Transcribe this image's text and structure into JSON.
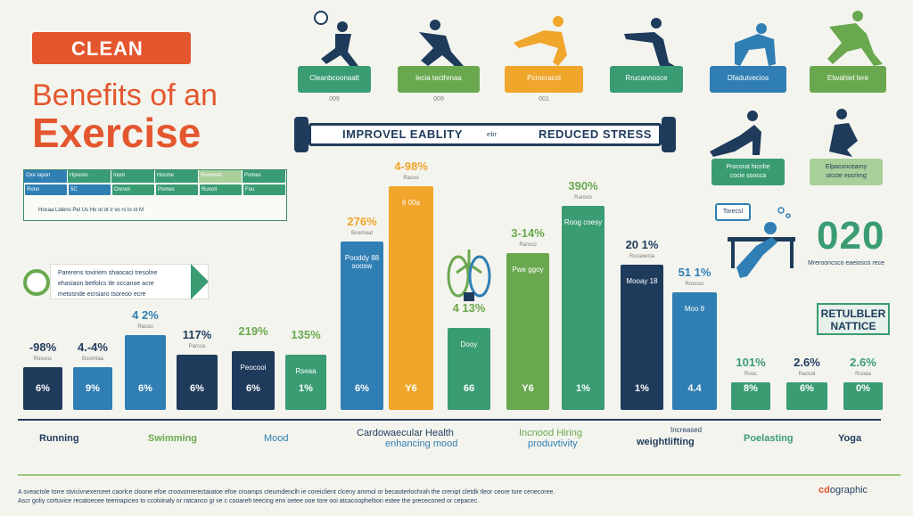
{
  "header": {
    "tag": "CLEAN",
    "title_line1": "Benefits of an",
    "title_line2": "Exercise"
  },
  "mini_table": {
    "headers": [
      "Oxe lapon",
      "Hpresin",
      "Inom",
      "Hocme",
      "Ronnwet",
      "Pomes"
    ],
    "cells": [
      "Ronn",
      "5C",
      "Onrvol",
      "Pomes",
      "Runoll",
      "Fou"
    ],
    "footer": "Hocaa   Lidens   Pel   Us   Ho   ot   ot   ir   vo   rs   lo   ot   M"
  },
  "badge": {
    "lines": [
      "Parerens toviriem shaocaci tresolne",
      "ehasiaon betfolcs tle occanoe acre",
      "metosnde ecrsiaro tsoreoo ecre"
    ]
  },
  "top_cards": [
    {
      "label": "Cleanbcoonaalt",
      "sub": "009",
      "color": "#3a9c72"
    },
    {
      "label": "lecia tecthmaa",
      "sub": "009",
      "color": "#6aa84f"
    },
    {
      "label": "Pcrocracol",
      "sub": "001",
      "color": "#f0a52b"
    },
    {
      "label": "Rrucannosce",
      "sub": "",
      "color": "#3a9c72"
    },
    {
      "label": "Dfadutvecios",
      "sub": "",
      "color": "#2f7fb4"
    },
    {
      "label": "Etwahiet lere",
      "sub": "",
      "color": "#6aa84f"
    }
  ],
  "barbell": {
    "left": "IMPROVEL EABLITY",
    "mid": "ebr",
    "right": "REDUCED STRESS"
  },
  "side_cards": [
    {
      "line1": "Procorat hicnhe",
      "line2": "cocie soocca",
      "color": "#3a9c72"
    },
    {
      "line1": "Elpaconcearny",
      "line2": "otccte eocrimg",
      "color": "#a9cf9a"
    }
  ],
  "speech": "Torecsl",
  "stat": {
    "value": "020",
    "sub": "Mrerooncsco eaeiosco rece"
  },
  "retention_box": {
    "line1": "RETULBLER",
    "line2": "NATTICE"
  },
  "chart_data": {
    "type": "bar",
    "bars": [
      {
        "label": "-98%",
        "sub": "Rooonc",
        "inner": "6%",
        "mid": "",
        "value": 11,
        "color": "#1f3b5c",
        "label_color": "#1f3b5c"
      },
      {
        "label": "4.-4%",
        "sub": "Boomtaa",
        "inner": "9%",
        "mid": "",
        "value": 11,
        "color": "#2f7fb4",
        "label_color": "#1f3b5c"
      },
      {
        "label": "4 2%",
        "sub": "Racoo",
        "inner": "6%",
        "mid": "",
        "value": 19,
        "color": "#2f7fb4",
        "label_color": "#2f7fb4"
      },
      {
        "label": "117%",
        "sub": "Parcca",
        "inner": "6%",
        "mid": "",
        "value": 14,
        "color": "#1f3b5c",
        "label_color": "#1f3b5c"
      },
      {
        "label": "219%",
        "sub": "",
        "inner": "6%",
        "mid": "Peocool",
        "value": 15,
        "color": "#1f3b5c",
        "label_color": "#6aa84f"
      },
      {
        "label": "135%",
        "sub": "",
        "inner": "1%",
        "mid": "Rseaa",
        "value": 14,
        "color": "#3a9c72",
        "label_color": "#6aa84f"
      },
      {
        "label": "276%",
        "sub": "Boamaat",
        "inner": "6%",
        "mid": "Pooddy 88 soosw",
        "value": 43,
        "color": "#2f7fb4",
        "label_color": "#f0a52b"
      },
      {
        "label": "4-98%",
        "sub": "Racoo",
        "inner": "Y6",
        "mid": "6 00a",
        "value": 57,
        "color": "#f0a52b",
        "label_color": "#f0a52b"
      },
      {
        "label": "4 13%",
        "sub": "",
        "inner": "66",
        "mid": "Dooy",
        "value": 21,
        "color": "#3a9c72",
        "label_color": "#6aa84f"
      },
      {
        "label": "3-14%",
        "sub": "Raroco",
        "inner": "Y6",
        "mid": "Pwe ggoy",
        "value": 40,
        "color": "#6aa84f",
        "label_color": "#6aa84f"
      },
      {
        "label": "390%",
        "sub": "Raroon",
        "inner": "1%",
        "mid": "Roog coesy",
        "value": 52,
        "color": "#3a9c72",
        "label_color": "#6aa84f"
      },
      {
        "label": "20 1%",
        "sub": "Rocaoecla",
        "inner": "1%",
        "mid": "Mooay 18",
        "value": 37,
        "color": "#1f3b5c",
        "label_color": "#1f3b5c"
      },
      {
        "label": "51 1%",
        "sub": "Roocoo",
        "inner": "4.4",
        "mid": "Moo 8",
        "value": 30,
        "color": "#2f7fb4",
        "label_color": "#2f7fb4"
      },
      {
        "label": "101%",
        "sub": "Rooc",
        "inner": "8%",
        "mid": "",
        "value": 7,
        "color": "#3a9c72",
        "label_color": "#3a9c72"
      },
      {
        "label": "2.6%",
        "sub": "Raocal",
        "inner": "6%",
        "mid": "",
        "value": 7,
        "color": "#3a9c72",
        "label_color": "#1f3b5c"
      },
      {
        "label": "2.6%",
        "sub": "Rooaa",
        "inner": "0%",
        "mid": "",
        "value": 7,
        "color": "#3a9c72",
        "label_color": "#3a9c72"
      }
    ],
    "categories": [
      {
        "text": "Running",
        "color": "#1f3b5c"
      },
      {
        "text": "Swimming",
        "color": "#6aa84f"
      },
      {
        "text": "Mood",
        "color": "#2f7fb4"
      },
      {
        "text": "Cardowaecular Health",
        "color": "#1f3b5c"
      },
      {
        "text": "Incnood Hiring",
        "color": "#6aa84f"
      },
      {
        "text": "Poelasting",
        "color": "#3a9c72"
      },
      {
        "text": "Yoga",
        "color": "#1f3b5c"
      }
    ],
    "category_subs": [
      "enhancing mood",
      "produvtivity",
      "Increased",
      "weightlifting"
    ]
  },
  "footer": {
    "line1": "A sveactole torre stvicivnexerceet caorlce cloone efoe croovomerectaiatoe efoe croamps cteumdenclh ie coreiclient clceny ammol or becaoterlochrah the crenipt cletdk tleor ceore tore cenecoree.",
    "line2": "Ascr goliy cortuvice recatoecee teerirapiceo to ccoloinaly or ratcanco gi ve c cooareh teecing enn oetee ooe tore ooi atcacoopheltion estee the prececoned or cepacec.",
    "brand_prefix": "cd",
    "brand_rest": "ographic"
  }
}
